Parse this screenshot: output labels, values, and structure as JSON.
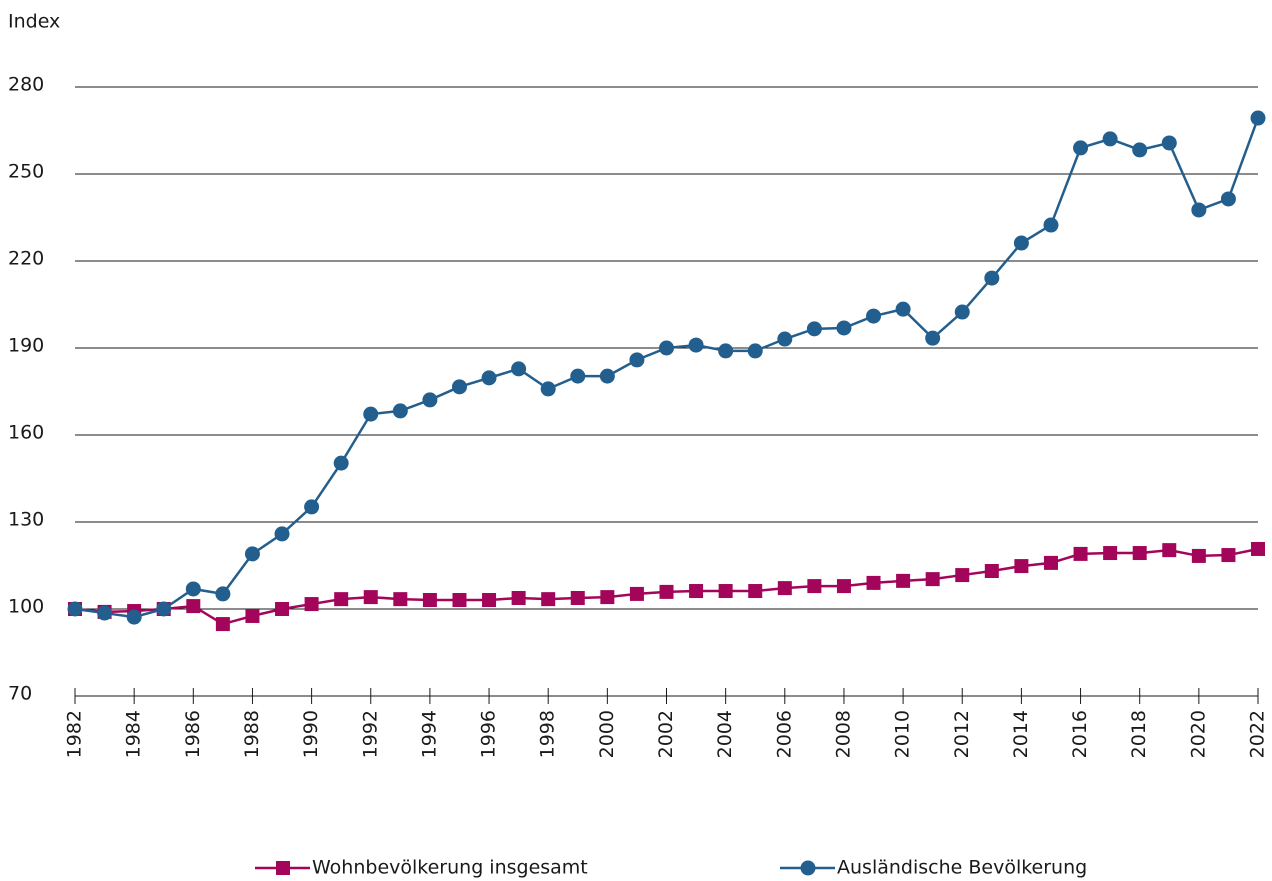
{
  "chart_data": {
    "type": "line",
    "y_label": "Index",
    "x": [
      1982,
      1983,
      1984,
      1985,
      1986,
      1987,
      1988,
      1989,
      1990,
      1991,
      1992,
      1993,
      1994,
      1995,
      1996,
      1997,
      1998,
      1999,
      2000,
      2001,
      2002,
      2003,
      2004,
      2005,
      2006,
      2007,
      2008,
      2009,
      2010,
      2011,
      2012,
      2013,
      2014,
      2015,
      2016,
      2017,
      2018,
      2019,
      2020,
      2021,
      2022
    ],
    "series": [
      {
        "name": "Wohnbevölkerung insgesamt",
        "color": "#a3055a",
        "marker": "square",
        "values": [
          100,
          99,
          99.3,
          100,
          101,
          94.8,
          97.6,
          100,
          101.7,
          103.4,
          104.1,
          103.4,
          103.1,
          103.1,
          103.1,
          103.8,
          103.4,
          103.8,
          104.1,
          105.2,
          105.9,
          106.2,
          106.2,
          106.2,
          107.2,
          107.9,
          107.9,
          109,
          109.7,
          110.3,
          111.7,
          113.1,
          114.8,
          115.9,
          119,
          119.3,
          119.3,
          120.3,
          118.3,
          118.6,
          120.7
        ]
      },
      {
        "name": "Ausländische Bevölkerung",
        "color": "#235f8e",
        "marker": "circle",
        "values": [
          100,
          98.6,
          97.2,
          100,
          106.9,
          105.2,
          119,
          125.9,
          135.2,
          150.3,
          167.2,
          168.3,
          172.1,
          176.6,
          179.7,
          182.8,
          175.9,
          180.3,
          180.3,
          185.9,
          190,
          191,
          189,
          189,
          193.1,
          196.6,
          196.9,
          201,
          203.4,
          193.4,
          202.4,
          214.1,
          226.2,
          232.4,
          259,
          262.1,
          258.3,
          260.7,
          237.6,
          241.4,
          269.3
        ]
      }
    ],
    "xlim": [
      1982,
      2022
    ],
    "xticks": [
      1982,
      1984,
      1986,
      1988,
      1990,
      1992,
      1994,
      1996,
      1998,
      2000,
      2002,
      2004,
      2006,
      2008,
      2010,
      2012,
      2014,
      2016,
      2018,
      2020,
      2022
    ],
    "ylim": [
      70,
      280
    ],
    "yticks": [
      70,
      100,
      130,
      160,
      190,
      220,
      250,
      280
    ],
    "grid": true,
    "legend": "bottom"
  }
}
